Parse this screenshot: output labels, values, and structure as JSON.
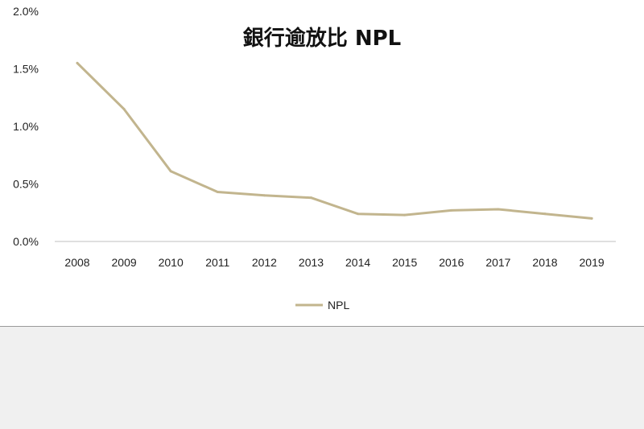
{
  "chart_data": {
    "type": "line",
    "title": "銀行逾放比 NPL",
    "xlabel": "",
    "ylabel": "",
    "categories": [
      "2008",
      "2009",
      "2010",
      "2011",
      "2012",
      "2013",
      "2014",
      "2015",
      "2016",
      "2017",
      "2018",
      "2019"
    ],
    "series": [
      {
        "name": "NPL",
        "values": [
          1.55,
          1.15,
          0.61,
          0.43,
          0.4,
          0.38,
          0.24,
          0.23,
          0.27,
          0.28,
          0.24,
          0.2
        ]
      }
    ],
    "ylim": [
      0,
      2.0
    ],
    "yticks": [
      "0.0%",
      "0.5%",
      "1.0%",
      "1.5%",
      "2.0%"
    ],
    "grid": false,
    "legend_position": "bottom",
    "colors": {
      "line": "#c2b58e",
      "axis": "#bfbfbf"
    }
  }
}
